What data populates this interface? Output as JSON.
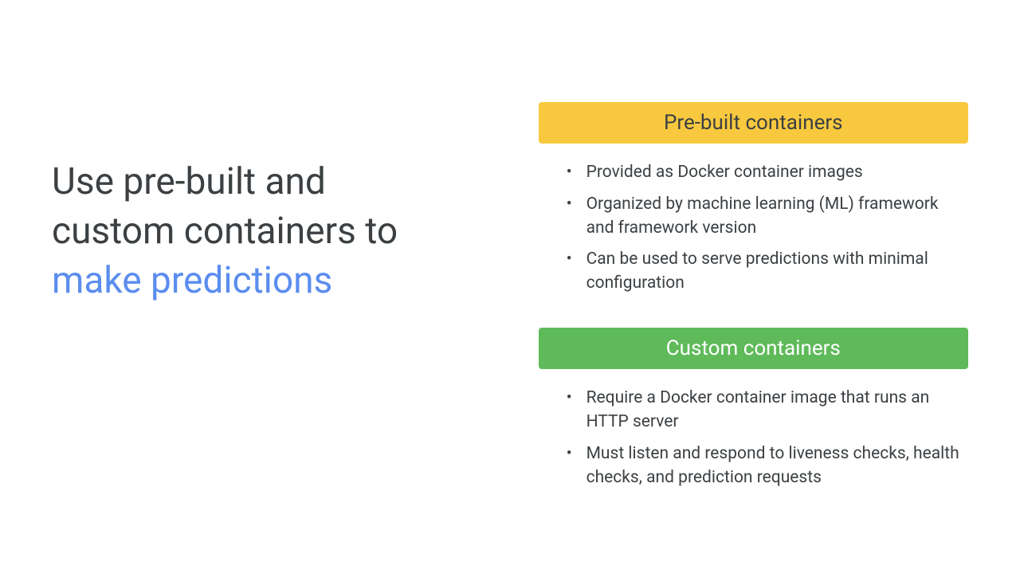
{
  "title": {
    "line1": "Use pre-built and",
    "line2": "custom containers to",
    "highlight": "make predictions"
  },
  "sections": {
    "prebuilt": {
      "header": "Pre-built containers",
      "header_bg": "#f8c93e",
      "header_color": "#3c4043",
      "bullets": [
        "Provided as Docker container images",
        "Organized by machine learning (ML) framework and framework version",
        "Can be used to serve predictions with minimal configuration"
      ]
    },
    "custom": {
      "header": "Custom containers",
      "header_bg": "#5fba5a",
      "header_color": "#ffffff",
      "bullets": [
        "Require a Docker container image that runs an HTTP server",
        "Must listen and respond to liveness checks, health checks, and prediction requests"
      ]
    }
  },
  "colors": {
    "background": "#ffffff",
    "text": "#3c4043",
    "highlight": "#5b8def",
    "yellow": "#f8c93e",
    "green": "#5fba5a"
  },
  "typography": {
    "title_fontsize": 46,
    "header_fontsize": 26,
    "bullet_fontsize": 21,
    "font_family": "Google Sans, Roboto, Arial, sans-serif"
  }
}
